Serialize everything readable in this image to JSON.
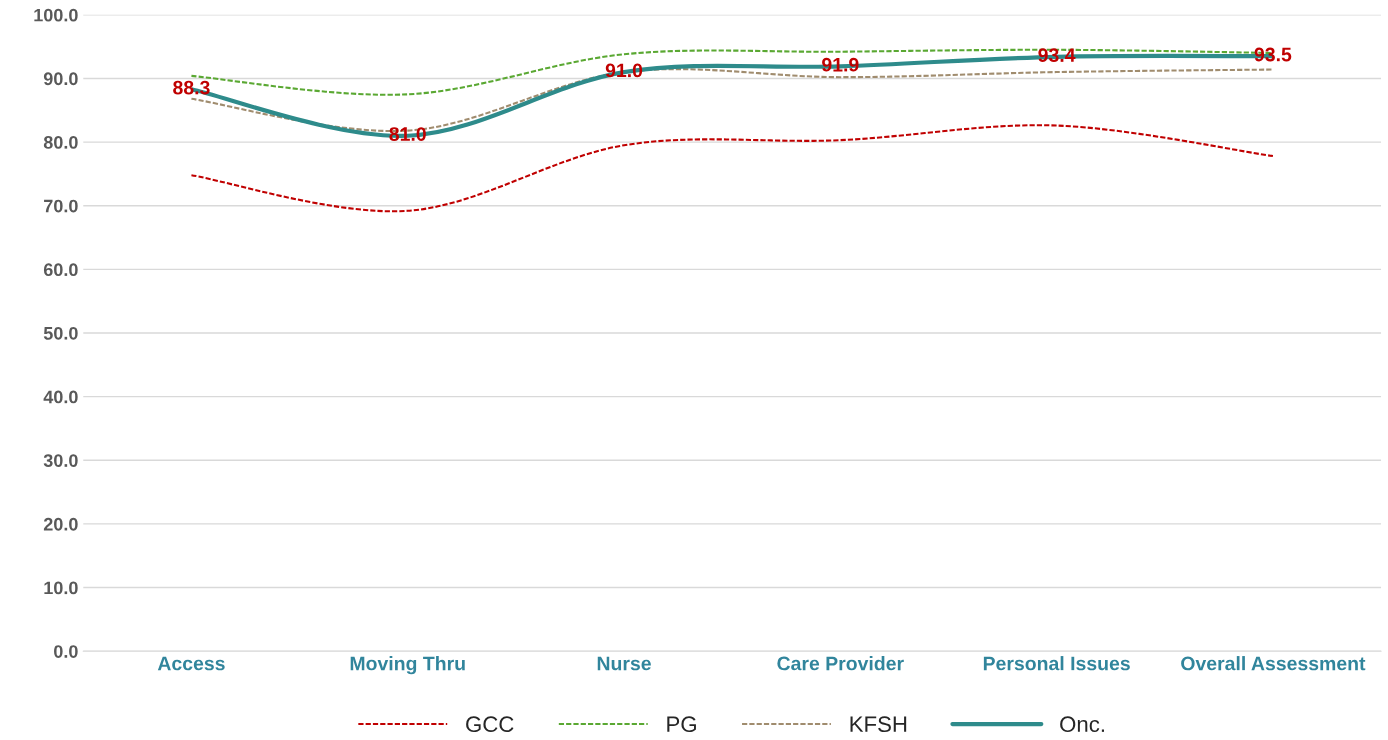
{
  "chart_data": {
    "type": "line",
    "categories": [
      "Access",
      "Moving Thru",
      "Nurse",
      "Care Provider",
      "Personal Issues",
      "Overall Assessment"
    ],
    "series": [
      {
        "name": "GCC",
        "color": "#c00000",
        "line_style": "dashed",
        "values": [
          74.8,
          69.2,
          79.5,
          80.3,
          82.6,
          77.8
        ]
      },
      {
        "name": "PG",
        "color": "#5aa832",
        "line_style": "dashed",
        "values": [
          90.4,
          87.5,
          93.8,
          94.2,
          94.5,
          94.0
        ]
      },
      {
        "name": "KFSH",
        "color": "#a08c6e",
        "line_style": "dashed",
        "values": [
          86.8,
          81.8,
          91.0,
          90.2,
          91.0,
          91.4
        ]
      },
      {
        "name": "Onc.",
        "color": "#2e8b8b",
        "line_style": "solid",
        "values": [
          88.3,
          81.0,
          91.0,
          91.9,
          93.4,
          93.5
        ],
        "value_labels": [
          "88.3",
          "81.0",
          "91.0",
          "91.9",
          "93.4",
          "93.5"
        ]
      }
    ],
    "ylim": [
      0,
      100
    ],
    "yticks": [
      {
        "value": 0,
        "label": "0.0"
      },
      {
        "value": 10,
        "label": "10.0"
      },
      {
        "value": 20,
        "label": "20.0"
      },
      {
        "value": 30,
        "label": "30.0"
      },
      {
        "value": 40,
        "label": "40.0"
      },
      {
        "value": 50,
        "label": "50.0"
      },
      {
        "value": 60,
        "label": "60.0"
      },
      {
        "value": 70,
        "label": "70.0"
      },
      {
        "value": 80,
        "label": "80.0"
      },
      {
        "value": 90,
        "label": "90.0"
      },
      {
        "value": 100,
        "label": "100.0"
      }
    ],
    "grid": "y",
    "legend": "bottom"
  }
}
